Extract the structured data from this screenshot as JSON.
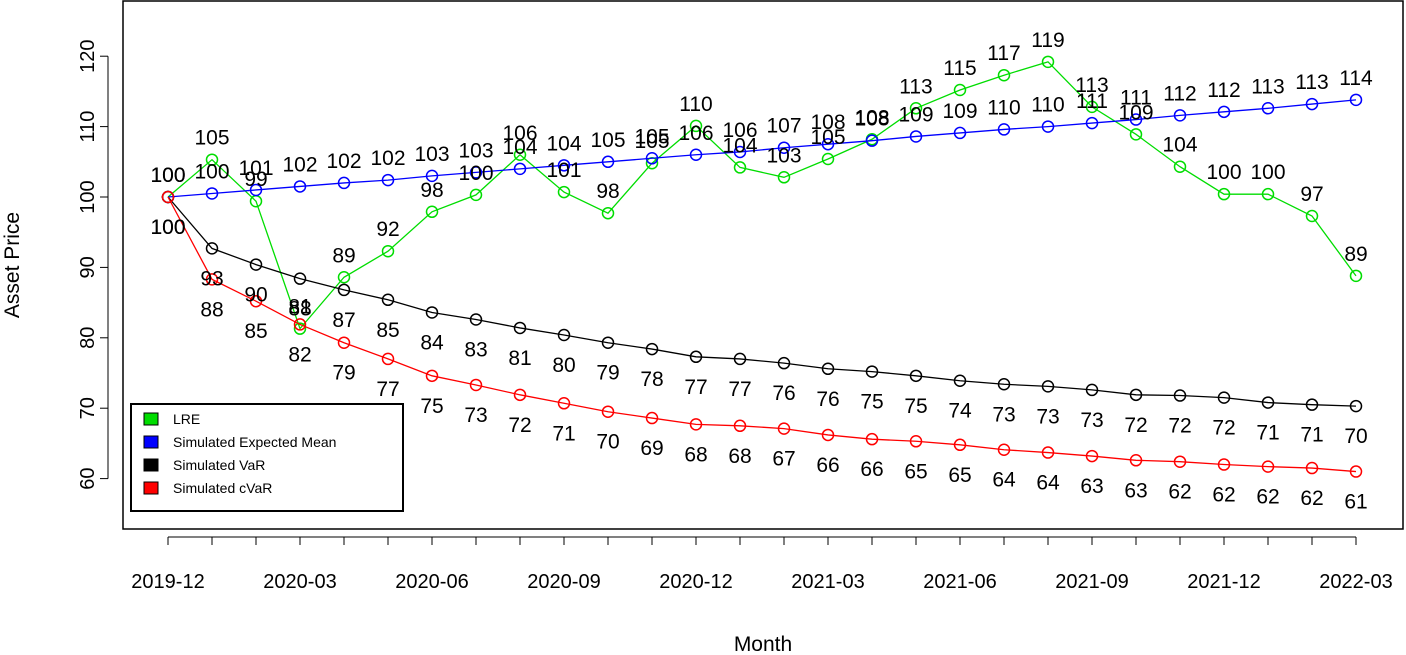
{
  "chart_data": {
    "type": "line",
    "xlabel": "Month",
    "ylabel": "Asset Price",
    "ylim": [
      53,
      126
    ],
    "y_ticks": [
      60,
      70,
      80,
      90,
      100,
      110,
      120
    ],
    "x": [
      "2019-12",
      "2020-01",
      "2020-02",
      "2020-03",
      "2020-04",
      "2020-05",
      "2020-06",
      "2020-07",
      "2020-08",
      "2020-09",
      "2020-10",
      "2020-11",
      "2020-12",
      "2021-01",
      "2021-02",
      "2021-03",
      "2021-04",
      "2021-05",
      "2021-06",
      "2021-07",
      "2021-08",
      "2021-09",
      "2021-10",
      "2021-11",
      "2021-12",
      "2022-01",
      "2022-02",
      "2022-03"
    ],
    "x_tick_labels": [
      "2019-12",
      "2020-03",
      "2020-06",
      "2020-09",
      "2020-12",
      "2021-03",
      "2021-06",
      "2021-09",
      "2021-12",
      "2022-03"
    ],
    "grid": false,
    "legend_position": "bottom-left",
    "series": [
      {
        "name": "LRE",
        "color": "#00dd00",
        "values": [
          100,
          105.3,
          99.4,
          81.3,
          88.6,
          92.3,
          97.9,
          100.3,
          106,
          100.7,
          97.7,
          104.8,
          110.1,
          104.2,
          102.8,
          105.4,
          108.2,
          112.6,
          115.2,
          117.3,
          119.2,
          112.8,
          108.9,
          104.3,
          100.4,
          100.4,
          97.3,
          88.8
        ],
        "labels": [
          "100",
          "105",
          "99",
          "81",
          "89",
          "92",
          "98",
          "100",
          "106",
          "101",
          "98",
          "105",
          "110",
          "104",
          "103",
          "105",
          "108",
          "113",
          "115",
          "117",
          "119",
          "113",
          "109",
          "104",
          "100",
          "100",
          "97",
          "89"
        ]
      },
      {
        "name": "Simulated Expected Mean",
        "color": "#0000ff",
        "values": [
          100,
          100.5,
          101,
          101.5,
          102,
          102.4,
          103,
          103.5,
          104,
          104.5,
          105,
          105.5,
          106,
          106.4,
          107,
          107.5,
          108,
          108.6,
          109.1,
          109.6,
          110,
          110.5,
          111,
          111.6,
          112.1,
          112.6,
          113.2,
          113.8
        ],
        "labels": [
          "100",
          "100",
          "101",
          "102",
          "102",
          "102",
          "103",
          "103",
          "104",
          "104",
          "105",
          "105",
          "106",
          "106",
          "107",
          "108",
          "108",
          "109",
          "109",
          "110",
          "110",
          "111",
          "111",
          "112",
          "112",
          "113",
          "113",
          "114"
        ]
      },
      {
        "name": "Simulated VaR",
        "color": "#000000",
        "values": [
          100,
          92.7,
          90.4,
          88.4,
          86.8,
          85.4,
          83.6,
          82.6,
          81.4,
          80.4,
          79.3,
          78.4,
          77.3,
          77,
          76.4,
          75.6,
          75.2,
          74.6,
          73.9,
          73.4,
          73.1,
          72.6,
          71.9,
          71.8,
          71.5,
          70.8,
          70.5,
          70.3
        ],
        "labels": [
          "100",
          "93",
          "90",
          "88",
          "87",
          "85",
          "84",
          "83",
          "81",
          "80",
          "79",
          "78",
          "77",
          "77",
          "76",
          "76",
          "75",
          "75",
          "74",
          "73",
          "73",
          "73",
          "72",
          "72",
          "72",
          "71",
          "71",
          "70"
        ]
      },
      {
        "name": "Simulated cVaR",
        "color": "#ff0000",
        "values": [
          100,
          88.3,
          85.2,
          81.9,
          79.3,
          77,
          74.6,
          73.3,
          71.9,
          70.7,
          69.5,
          68.6,
          67.7,
          67.5,
          67.1,
          66.2,
          65.6,
          65.3,
          64.8,
          64.1,
          63.7,
          63.2,
          62.6,
          62.4,
          62,
          61.7,
          61.5,
          61
        ],
        "labels": [
          "100",
          "88",
          "85",
          "82",
          "79",
          "77",
          "75",
          "73",
          "72",
          "71",
          "70",
          "69",
          "68",
          "68",
          "67",
          "66",
          "66",
          "65",
          "65",
          "64",
          "64",
          "63",
          "63",
          "62",
          "62",
          "62",
          "62",
          "61"
        ]
      }
    ]
  }
}
